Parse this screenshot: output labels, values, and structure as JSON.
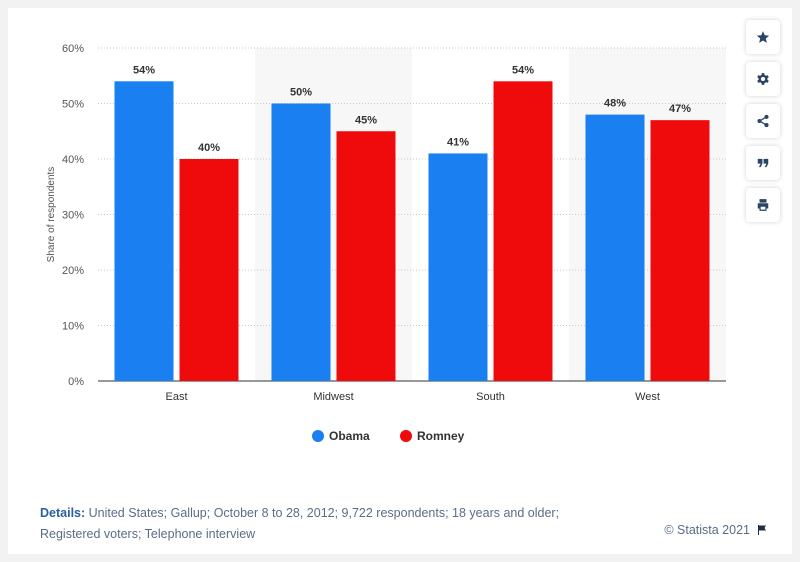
{
  "chart_data": {
    "type": "bar",
    "title": "",
    "xlabel": "",
    "ylabel": "Share of respondents",
    "ylim": [
      0,
      60
    ],
    "yticks": [
      "0%",
      "10%",
      "20%",
      "30%",
      "40%",
      "50%",
      "60%"
    ],
    "categories": [
      "East",
      "Midwest",
      "South",
      "West"
    ],
    "series": [
      {
        "name": "Obama",
        "color": "#1a7ff0",
        "values": [
          54,
          50,
          41,
          48
        ],
        "labels": [
          "54%",
          "50%",
          "41%",
          "48%"
        ]
      },
      {
        "name": "Romney",
        "color": "#ef0b0b",
        "values": [
          40,
          45,
          54,
          47
        ],
        "labels": [
          "40%",
          "45%",
          "54%",
          "47%"
        ]
      }
    ],
    "legend_position": "bottom",
    "grid": true
  },
  "footer": {
    "details_label": "Details:",
    "details_text": " United States; Gallup; October 8 to 28, 2012; 9,722 respondents; 18 years and older; Registered voters; Telephone interview",
    "credit": "© Statista 2021"
  },
  "toolbar": {
    "icons": [
      "star-icon",
      "gear-icon",
      "share-icon",
      "quote-icon",
      "print-icon"
    ]
  }
}
